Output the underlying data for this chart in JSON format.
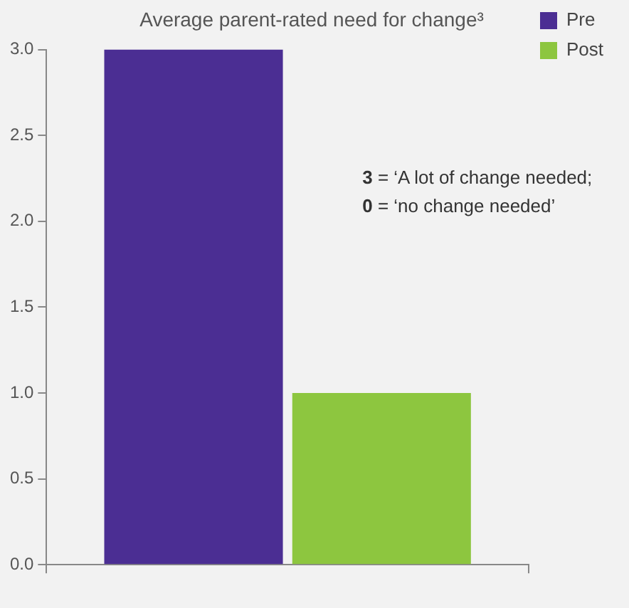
{
  "chart_data": {
    "type": "bar",
    "title": "Average parent-rated need for change³",
    "categories": [
      null
    ],
    "series": [
      {
        "name": "Pre",
        "color": "#4b2e93",
        "values": [
          3.0
        ]
      },
      {
        "name": "Post",
        "color": "#8dc63f",
        "values": [
          1.0
        ]
      }
    ],
    "ylim": [
      0,
      3
    ],
    "yticks": [
      {
        "value": 0,
        "label": "0.0"
      },
      {
        "value": 0.5,
        "label": "0.5"
      },
      {
        "value": 1,
        "label": "1.0"
      },
      {
        "value": 1.5,
        "label": "1.5"
      },
      {
        "value": 2,
        "label": "2.0"
      },
      {
        "value": 2.5,
        "label": "2.5"
      },
      {
        "value": 3,
        "label": "3.0"
      }
    ],
    "grid": false,
    "legend": "top right",
    "annotations": [
      "3 = ‘A lot of change needed;",
      "0 = ‘no change needed’"
    ]
  }
}
